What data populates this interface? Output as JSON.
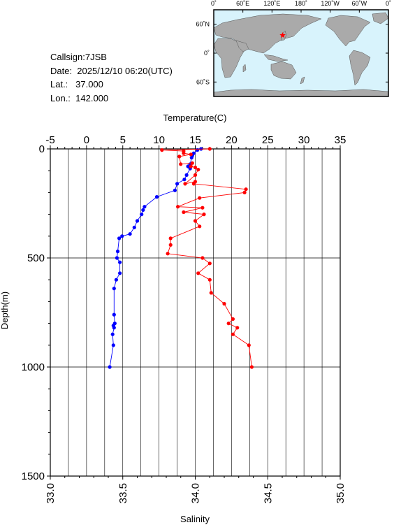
{
  "info": {
    "callsign": "Callsign:7JSB",
    "date": "Date:  2025/12/10 06:20(UTC)",
    "lat": "Lat.:   37.000",
    "lon": "Lon.:  142.000"
  },
  "map": {
    "lon_ticks": [
      "0˚",
      "60˚E",
      "120˚E",
      "180˚",
      "120˚W",
      "60˚W",
      "0˚"
    ],
    "lat_ticks": [
      "60˚N",
      "0˚",
      "60˚S"
    ],
    "station": {
      "lat": 37.0,
      "lon": 142.0
    },
    "colors": {
      "ocean": "#d8f3fc",
      "land": "#aaaaaa",
      "marker": "#ff0000"
    }
  },
  "chart_data": {
    "type": "line",
    "xlabel_top": "Temperature(C)",
    "xlabel_bottom": "Salinity",
    "ylabel": "Depth(m)",
    "temperature_lim": [
      -5,
      35
    ],
    "salinity_lim": [
      33.0,
      35.0
    ],
    "depth_lim": [
      0,
      1500
    ],
    "temperature_ticks": [
      "-5",
      "0",
      "5",
      "10",
      "15",
      "20",
      "25",
      "30",
      "35"
    ],
    "salinity_ticks": [
      "33.0",
      "33.5",
      "34.0",
      "34.5",
      "35.0"
    ],
    "depth_ticks": [
      "0",
      "500",
      "1000",
      "1500"
    ],
    "grid": true,
    "series": [
      {
        "key": "temperature",
        "color": "#0000ff",
        "points": [
          [
            15.8,
            0
          ],
          [
            15.3,
            5
          ],
          [
            14.8,
            20
          ],
          [
            14.6,
            30
          ],
          [
            14.5,
            40
          ],
          [
            14.3,
            70
          ],
          [
            14.0,
            80
          ],
          [
            14.3,
            90
          ],
          [
            13.8,
            120
          ],
          [
            13.5,
            140
          ],
          [
            12.5,
            160
          ],
          [
            12.2,
            190
          ],
          [
            9.7,
            220
          ],
          [
            8.0,
            265
          ],
          [
            7.8,
            280
          ],
          [
            7.6,
            300
          ],
          [
            7.0,
            330
          ],
          [
            6.6,
            360
          ],
          [
            6.0,
            390
          ],
          [
            4.9,
            400
          ],
          [
            4.5,
            410
          ],
          [
            4.3,
            470
          ],
          [
            4.2,
            500
          ],
          [
            4.6,
            520
          ],
          [
            4.6,
            570
          ],
          [
            4.1,
            600
          ],
          [
            3.8,
            640
          ],
          [
            3.8,
            760
          ],
          [
            3.9,
            800
          ],
          [
            3.7,
            810
          ],
          [
            3.8,
            820
          ],
          [
            3.6,
            850
          ],
          [
            3.7,
            900
          ],
          [
            3.2,
            1000
          ]
        ]
      },
      {
        "key": "salinity",
        "color": "#ff0000",
        "points": [
          [
            34.1,
            0
          ],
          [
            33.77,
            5
          ],
          [
            33.92,
            10
          ],
          [
            33.92,
            20
          ],
          [
            33.97,
            25
          ],
          [
            33.89,
            35
          ],
          [
            33.9,
            70
          ],
          [
            33.98,
            65
          ],
          [
            33.97,
            80
          ],
          [
            34.0,
            85
          ],
          [
            34.02,
            95
          ],
          [
            34.0,
            120
          ],
          [
            33.93,
            160
          ],
          [
            34.0,
            150
          ],
          [
            33.99,
            160
          ],
          [
            34.35,
            185
          ],
          [
            34.34,
            200
          ],
          [
            34.03,
            225
          ],
          [
            33.88,
            265
          ],
          [
            34.05,
            270
          ],
          [
            33.92,
            290
          ],
          [
            34.06,
            300
          ],
          [
            34.0,
            330
          ],
          [
            34.03,
            355
          ],
          [
            33.83,
            410
          ],
          [
            33.83,
            440
          ],
          [
            33.81,
            480
          ],
          [
            34.05,
            500
          ],
          [
            34.1,
            525
          ],
          [
            34.02,
            570
          ],
          [
            34.1,
            600
          ],
          [
            34.11,
            660
          ],
          [
            34.2,
            710
          ],
          [
            34.26,
            780
          ],
          [
            34.23,
            800
          ],
          [
            34.29,
            820
          ],
          [
            34.26,
            850
          ],
          [
            34.37,
            900
          ],
          [
            34.39,
            1000
          ]
        ]
      }
    ]
  }
}
